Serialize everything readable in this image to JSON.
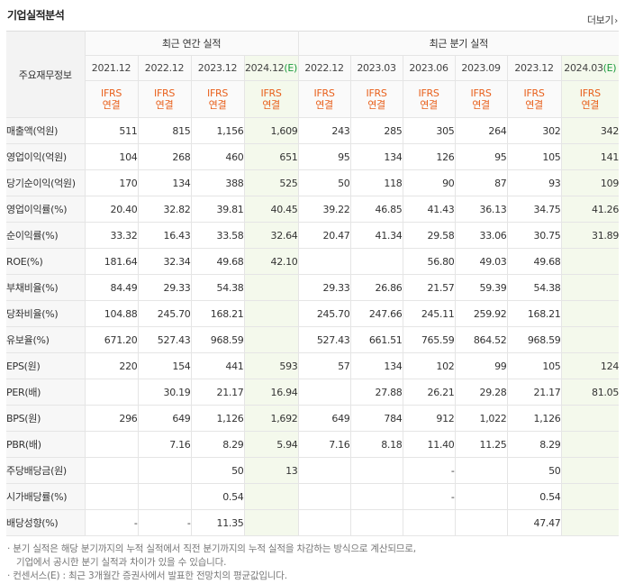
{
  "section_title": "기업실적분석",
  "more_label": "더보기",
  "more_chevron": "›",
  "header": {
    "corner_label": "주요재무정보",
    "annual_group_label": "최근 연간 실적",
    "quarter_group_label": "최근 분기 실적",
    "annual_periods": [
      {
        "period": "2021.12",
        "est": ""
      },
      {
        "period": "2022.12",
        "est": ""
      },
      {
        "period": "2023.12",
        "est": ""
      },
      {
        "period": "2024.12",
        "est": "(E)"
      }
    ],
    "quarter_periods": [
      {
        "period": "2022.12",
        "est": ""
      },
      {
        "period": "2023.03",
        "est": ""
      },
      {
        "period": "2023.06",
        "est": ""
      },
      {
        "period": "2023.09",
        "est": ""
      },
      {
        "period": "2023.12",
        "est": ""
      },
      {
        "period": "2024.03",
        "est": "(E)"
      }
    ],
    "ifrs_line1": "IFRS",
    "ifrs_line2": "연결"
  },
  "rows": [
    {
      "label": "매출액(억원)",
      "values": [
        "511",
        "815",
        "1,156",
        "1,609",
        "243",
        "285",
        "305",
        "264",
        "302",
        "342"
      ]
    },
    {
      "label": "영업이익(억원)",
      "values": [
        "104",
        "268",
        "460",
        "651",
        "95",
        "134",
        "126",
        "95",
        "105",
        "141"
      ]
    },
    {
      "label": "당기순이익(억원)",
      "values": [
        "170",
        "134",
        "388",
        "525",
        "50",
        "118",
        "90",
        "87",
        "93",
        "109"
      ]
    },
    {
      "label": "영업이익률(%)",
      "values": [
        "20.40",
        "32.82",
        "39.81",
        "40.45",
        "39.22",
        "46.85",
        "41.43",
        "36.13",
        "34.75",
        "41.26"
      ]
    },
    {
      "label": "순이익률(%)",
      "values": [
        "33.32",
        "16.43",
        "33.58",
        "32.64",
        "20.47",
        "41.34",
        "29.58",
        "33.06",
        "30.75",
        "31.89"
      ]
    },
    {
      "label": "ROE(%)",
      "values": [
        "181.64",
        "32.34",
        "49.68",
        "42.10",
        "",
        "",
        "56.80",
        "49.03",
        "49.68",
        ""
      ]
    },
    {
      "label": "부채비율(%)",
      "values": [
        "84.49",
        "29.33",
        "54.38",
        "",
        "29.33",
        "26.86",
        "21.57",
        "59.39",
        "54.38",
        ""
      ]
    },
    {
      "label": "당좌비율(%)",
      "values": [
        "104.88",
        "245.70",
        "168.21",
        "",
        "245.70",
        "247.66",
        "245.11",
        "259.92",
        "168.21",
        ""
      ]
    },
    {
      "label": "유보율(%)",
      "values": [
        "671.20",
        "527.43",
        "968.59",
        "",
        "527.43",
        "661.51",
        "765.59",
        "864.52",
        "968.59",
        ""
      ]
    },
    {
      "label": "EPS(원)",
      "values": [
        "220",
        "154",
        "441",
        "593",
        "57",
        "134",
        "102",
        "99",
        "105",
        "124"
      ]
    },
    {
      "label": "PER(배)",
      "values": [
        "",
        "30.19",
        "21.17",
        "16.94",
        "",
        "27.88",
        "26.21",
        "29.28",
        "21.17",
        "81.05"
      ]
    },
    {
      "label": "BPS(원)",
      "values": [
        "296",
        "649",
        "1,126",
        "1,692",
        "649",
        "784",
        "912",
        "1,022",
        "1,126",
        ""
      ]
    },
    {
      "label": "PBR(배)",
      "values": [
        "",
        "7.16",
        "8.29",
        "5.94",
        "7.16",
        "8.18",
        "11.40",
        "11.25",
        "8.29",
        ""
      ]
    },
    {
      "label": "주당배당금(원)",
      "values": [
        "",
        "",
        "50",
        "13",
        "",
        "",
        "-",
        "",
        "50",
        ""
      ]
    },
    {
      "label": "시가배당률(%)",
      "values": [
        "",
        "",
        "0.54",
        "",
        "",
        "",
        "-",
        "",
        "0.54",
        ""
      ]
    },
    {
      "label": "배당성향(%)",
      "values": [
        "-",
        "-",
        "11.35",
        "",
        "",
        "",
        "",
        "",
        "47.47",
        ""
      ]
    }
  ],
  "notes": {
    "line1": "· 분기 실적은 해당 분기까지의 누적 실적에서 직전 분기까지의 누적 실적을 차감하는 방식으로 계산되므로,",
    "line2": "기업에서 공시한 분기 실적과 차이가 있을 수 있습니다.",
    "line3": "· 컨센서스(E) : 최근 3개월간 증권사에서 발표한 전망치의 평균값입니다."
  },
  "colors": {
    "ifrs": "#e8601c",
    "estimate_bg": "#f4f9ec",
    "estimate_mark": "#1a9a3c",
    "label_bg": "#f7f7f7"
  }
}
